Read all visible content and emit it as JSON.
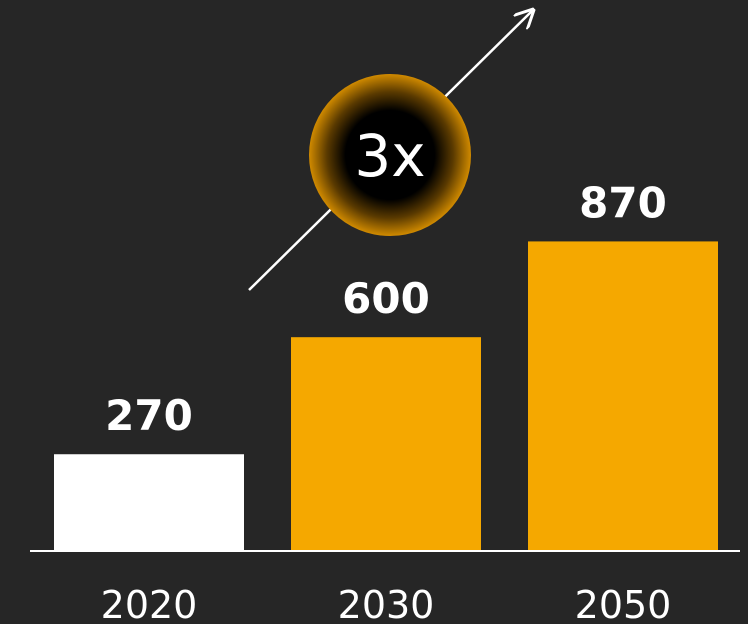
{
  "colors": {
    "background": "#262626",
    "bar_baseline": "#ffffff",
    "bar_highlight": "#f5a800",
    "text": "#ffffff"
  },
  "chart_data": {
    "type": "bar",
    "categories": [
      "2020",
      "2030",
      "2050"
    ],
    "values": [
      270,
      600,
      870
    ],
    "bar_colors": [
      "#ffffff",
      "#f5a800",
      "#f5a800"
    ],
    "data_labels": [
      "270",
      "600",
      "870"
    ],
    "ylim": [
      0,
      900
    ],
    "grid": false,
    "legend": "none",
    "annotation": {
      "text": "3x",
      "style": "circle-badge-with-upward-arrow"
    }
  }
}
